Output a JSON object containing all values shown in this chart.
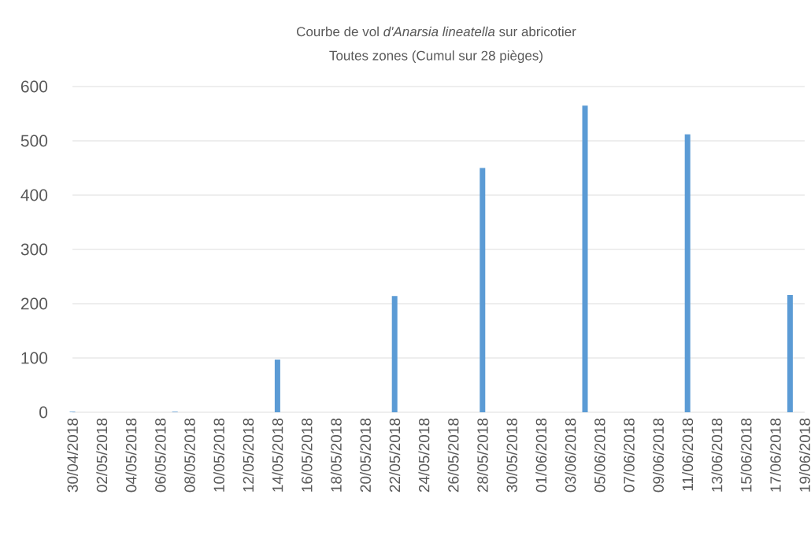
{
  "chart_data": {
    "type": "bar",
    "title": "Courbe de vol *d'Anarsia lineatella* sur abricotier",
    "subtitle": "Toutes zones (Cumul sur 28 pièges)",
    "x": [
      "2018-04-30",
      "2018-05-07",
      "2018-05-14",
      "2018-05-22",
      "2018-05-28",
      "2018-06-04",
      "2018-06-11",
      "2018-06-18"
    ],
    "values": [
      1,
      1,
      97,
      214,
      450,
      565,
      512,
      216
    ],
    "color": "#5b9bd5",
    "xlim": [
      "2018-04-30",
      "2018-06-19"
    ],
    "xticks": [
      {
        "value": "2018-04-30",
        "label": "30/04/2018"
      },
      {
        "value": "2018-05-02",
        "label": "02/05/2018"
      },
      {
        "value": "2018-05-04",
        "label": "04/05/2018"
      },
      {
        "value": "2018-05-06",
        "label": "06/05/2018"
      },
      {
        "value": "2018-05-08",
        "label": "08/05/2018"
      },
      {
        "value": "2018-05-10",
        "label": "10/05/2018"
      },
      {
        "value": "2018-05-12",
        "label": "12/05/2018"
      },
      {
        "value": "2018-05-14",
        "label": "14/05/2018"
      },
      {
        "value": "2018-05-16",
        "label": "16/05/2018"
      },
      {
        "value": "2018-05-18",
        "label": "18/05/2018"
      },
      {
        "value": "2018-05-20",
        "label": "20/05/2018"
      },
      {
        "value": "2018-05-22",
        "label": "22/05/2018"
      },
      {
        "value": "2018-05-24",
        "label": "24/05/2018"
      },
      {
        "value": "2018-05-26",
        "label": "26/05/2018"
      },
      {
        "value": "2018-05-28",
        "label": "28/05/2018"
      },
      {
        "value": "2018-05-30",
        "label": "30/05/2018"
      },
      {
        "value": "2018-06-01",
        "label": "01/06/2018"
      },
      {
        "value": "2018-06-03",
        "label": "03/06/2018"
      },
      {
        "value": "2018-06-05",
        "label": "05/06/2018"
      },
      {
        "value": "2018-06-07",
        "label": "07/06/2018"
      },
      {
        "value": "2018-06-09",
        "label": "09/06/2018"
      },
      {
        "value": "2018-06-11",
        "label": "11/06/2018"
      },
      {
        "value": "2018-06-13",
        "label": "13/06/2018"
      },
      {
        "value": "2018-06-15",
        "label": "15/06/2018"
      },
      {
        "value": "2018-06-17",
        "label": "17/06/2018"
      },
      {
        "value": "2018-06-19",
        "label": "19/06/2018"
      }
    ],
    "ylim": [
      0,
      600
    ],
    "yticks": [
      0,
      100,
      200,
      300,
      400,
      500,
      600
    ],
    "grid": "y"
  }
}
